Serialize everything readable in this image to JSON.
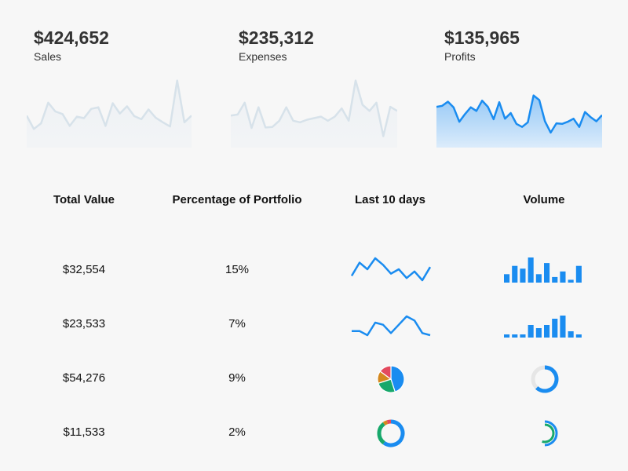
{
  "chart_data": [
    {
      "type": "area",
      "title": "$424,652",
      "subtitle": "Sales",
      "values": [
        62,
        36,
        47,
        87,
        70,
        65,
        42,
        60,
        57,
        75,
        78,
        42,
        86,
        66,
        80,
        61,
        55,
        74,
        58,
        49,
        41,
        130,
        49,
        62
      ],
      "ylim": [
        0,
        140
      ],
      "color": "#d7e2ea"
    },
    {
      "type": "area",
      "title": "$235,312",
      "subtitle": "Expenses",
      "values": [
        62,
        64,
        87,
        38,
        78,
        39,
        40,
        52,
        78,
        52,
        49,
        54,
        57,
        60,
        52,
        60,
        76,
        52,
        130,
        83,
        71,
        87,
        22,
        79,
        71
      ],
      "ylim": [
        0,
        140
      ],
      "color": "#d7e2ea"
    },
    {
      "type": "area",
      "title": "$135,965",
      "subtitle": "Profits",
      "values": [
        79,
        81,
        89,
        78,
        50,
        65,
        78,
        71,
        91,
        79,
        55,
        88,
        56,
        67,
        46,
        40,
        49,
        101,
        92,
        51,
        29,
        47,
        46,
        50,
        56,
        40,
        69,
        59,
        51,
        63
      ],
      "ylim": [
        0,
        140
      ],
      "color": "#1a8cf0"
    },
    {
      "type": "table",
      "columns": [
        "Total Value",
        "Percentage of Portfolio",
        "Last 10 days",
        "Volume"
      ],
      "rows": [
        {
          "total": "$32,554",
          "percent": "15%",
          "last10": {
            "type": "line",
            "values": [
              3,
              9,
              6,
              11,
              8,
              4,
              6,
              2,
              5,
              1,
              7
            ]
          },
          "volume": {
            "type": "bar",
            "values": [
              3,
              6,
              5,
              9,
              3,
              7,
              2,
              4,
              1,
              6
            ]
          }
        },
        {
          "total": "$23,533",
          "percent": "7%",
          "last10": {
            "type": "line",
            "values": [
              3,
              3,
              1,
              7,
              6,
              2,
              6,
              10,
              8,
              2,
              1
            ]
          },
          "volume": {
            "type": "bar",
            "values": [
              1,
              1,
              1,
              4,
              3,
              4,
              6,
              7,
              2,
              1
            ]
          }
        },
        {
          "total": "$54,276",
          "percent": "9%",
          "last10": {
            "type": "pie",
            "values": [
              45,
              25,
              15,
              15
            ],
            "colors": [
              "#1a8cf0",
              "#17a86b",
              "#d4881e",
              "#e34a5e"
            ]
          },
          "volume": {
            "type": "donut",
            "value": 0.62,
            "colors": [
              "#1a8cf0",
              "#e6e6e6"
            ]
          }
        },
        {
          "total": "$11,533",
          "percent": "2%",
          "last10": {
            "type": "donut",
            "values": [
              60,
              30,
              5,
              5
            ],
            "colors": [
              "#1a8cf0",
              "#17a86b",
              "#d4881e",
              "#e34a5e"
            ]
          },
          "volume": {
            "type": "radial",
            "values": [
              0.5,
              0.55
            ],
            "colors": [
              "#1a8cf0",
              "#17a86b"
            ]
          }
        }
      ]
    }
  ]
}
